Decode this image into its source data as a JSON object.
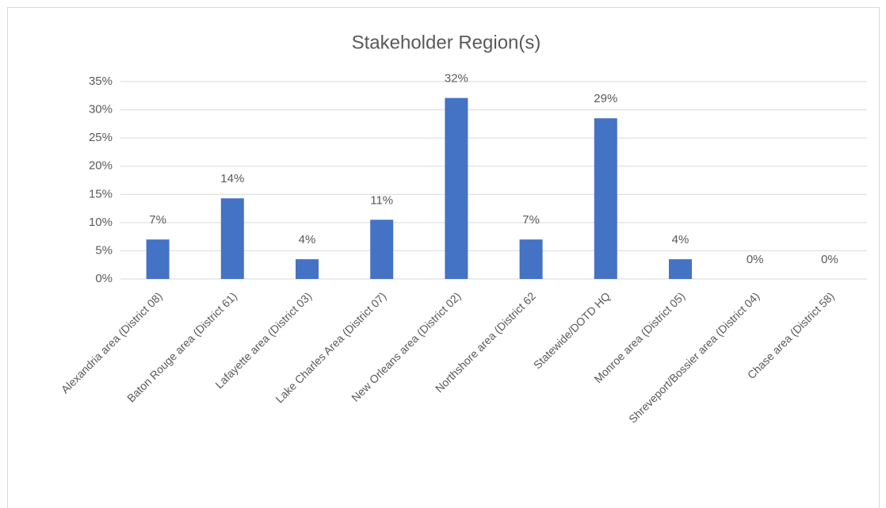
{
  "chart_data": {
    "type": "bar",
    "title": "Stakeholder Region(s)",
    "categories": [
      "Alexandria area (District 08)",
      "Baton Rouge area (District 61)",
      "Lafayette area (District 03)",
      "Lake Charles Area (District 07)",
      "New Orleans area (District 02)",
      "Northshore area (District 62",
      "Statewide/DOTD HQ",
      "Monroe area (District 05)",
      "Shreveport/Bossier area (District 04)",
      "Chase area (District 58)"
    ],
    "values": [
      7,
      14.3,
      3.5,
      10.5,
      32.1,
      7,
      28.5,
      3.5,
      0,
      0
    ],
    "value_labels": [
      "7%",
      "14%",
      "4%",
      "11%",
      "32%",
      "7%",
      "29%",
      "4%",
      "0%",
      "0%"
    ],
    "color": "#4472c4",
    "ylim": [
      0,
      35
    ],
    "yticks": [
      {
        "value": 0,
        "label": "0%"
      },
      {
        "value": 5,
        "label": "5%"
      },
      {
        "value": 10,
        "label": "10%"
      },
      {
        "value": 15,
        "label": "15%"
      },
      {
        "value": 20,
        "label": "20%"
      },
      {
        "value": 25,
        "label": "25%"
      },
      {
        "value": 30,
        "label": "30%"
      },
      {
        "value": 35,
        "label": "35%"
      }
    ],
    "grid": true
  }
}
